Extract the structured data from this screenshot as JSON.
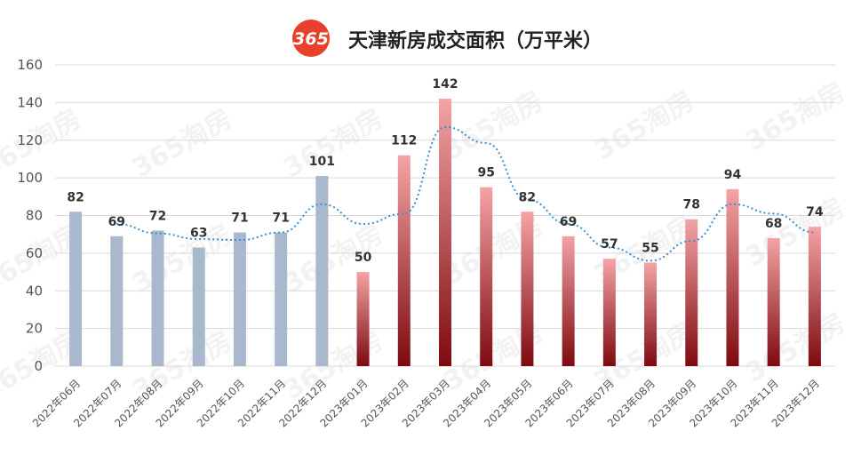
{
  "header": {
    "logo_text": "365",
    "title": "天津新房成交面积（万平米）"
  },
  "watermark": "365淘房",
  "chart_data": {
    "type": "bar",
    "title": "天津新房成交面积（万平米）",
    "xlabel": "",
    "ylabel": "",
    "ylim": [
      0,
      160
    ],
    "yticks": [
      0,
      20,
      40,
      60,
      80,
      100,
      120,
      140,
      160
    ],
    "grid": true,
    "legend": "none",
    "categories": [
      "2022年06月",
      "2022年07月",
      "2022年08月",
      "2022年09月",
      "2022年10月",
      "2022年11月",
      "2022年12月",
      "2023年01月",
      "2023年02月",
      "2023年03月",
      "2023年04月",
      "2023年05月",
      "2023年06月",
      "2023年07月",
      "2023年08月",
      "2023年09月",
      "2023年10月",
      "2023年11月",
      "2023年12月"
    ],
    "values": [
      82,
      69,
      72,
      63,
      71,
      71,
      101,
      50,
      112,
      142,
      95,
      82,
      69,
      57,
      55,
      78,
      94,
      68,
      74
    ],
    "colors": {
      "2022": "#a9b8cd",
      "2023_top": "#f4a3a6",
      "2023_bottom": "#7e0a10",
      "trendline": "#3a8fd0",
      "grid": "#d9d9d9",
      "logo": "#e8402d"
    },
    "trendline": "2-period moving average (dotted)"
  }
}
